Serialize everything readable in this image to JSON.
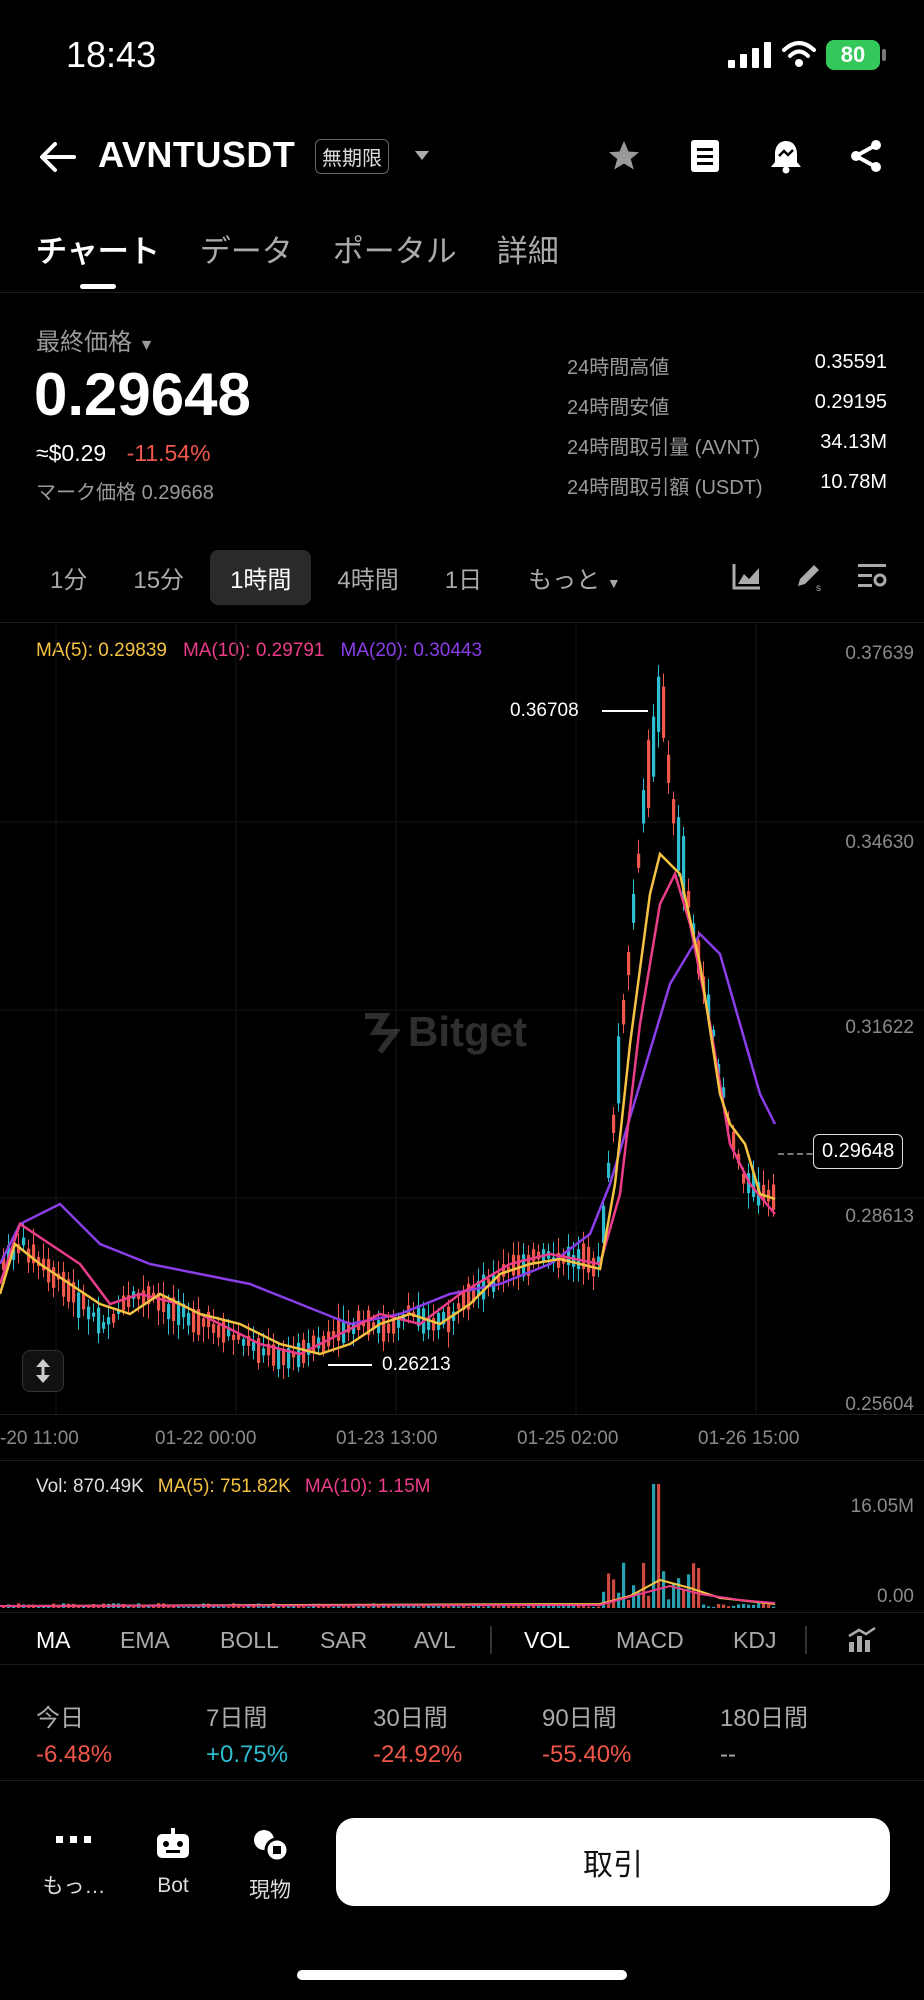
{
  "status_bar": {
    "time": "18:43",
    "battery": "80"
  },
  "header": {
    "title": "AVNTUSDT",
    "tag": "無期限"
  },
  "tabs": [
    {
      "label": "チャート"
    },
    {
      "label": "データ"
    },
    {
      "label": "ポータル"
    },
    {
      "label": "詳細"
    }
  ],
  "price": {
    "label": "最終価格",
    "last": "0.29648",
    "usd": "≈$0.29",
    "change": "-11.54%",
    "mark_label": "マーク価格",
    "mark_value": "0.29668"
  },
  "stats": [
    {
      "label": "24時間高値",
      "value": "0.35591"
    },
    {
      "label": "24時間安値",
      "value": "0.29195"
    },
    {
      "label": "24時間取引量 (AVNT)",
      "value": "34.13M"
    },
    {
      "label": "24時間取引額 (USDT)",
      "value": "10.78M"
    }
  ],
  "timeframes": [
    {
      "label": "1分"
    },
    {
      "label": "15分"
    },
    {
      "label": "1時間"
    },
    {
      "label": "4時間"
    },
    {
      "label": "1日"
    },
    {
      "label": "もっと"
    }
  ],
  "ma_legend": {
    "ma5": "MA(5): 0.29839",
    "ma10": "MA(10): 0.29791",
    "ma20": "MA(20): 0.30443"
  },
  "price_axis": [
    "0.37639",
    "0.34630",
    "0.31622",
    "0.28613",
    "0.25604"
  ],
  "time_axis": [
    "-20 11:00",
    "01-22 00:00",
    "01-23 13:00",
    "01-25 02:00",
    "01-26 15:00"
  ],
  "chart_annotations": {
    "high": "0.36708",
    "low": "0.26213",
    "current": "0.29648"
  },
  "watermark": "Bitget",
  "volume": {
    "vol": "Vol: 870.49K",
    "ma5": "MA(5): 751.82K",
    "ma10": "MA(10): 1.15M",
    "axis_max": "16.05M",
    "axis_min": "0.00"
  },
  "indicators": [
    {
      "label": "MA"
    },
    {
      "label": "EMA"
    },
    {
      "label": "BOLL"
    },
    {
      "label": "SAR"
    },
    {
      "label": "AVL"
    },
    {
      "label": "VOL"
    },
    {
      "label": "MACD"
    },
    {
      "label": "KDJ"
    }
  ],
  "performance": [
    {
      "label": "今日",
      "value": "-6.48%"
    },
    {
      "label": "7日間",
      "value": "+0.75%"
    },
    {
      "label": "30日間",
      "value": "-24.92%"
    },
    {
      "label": "90日間",
      "value": "-55.40%"
    },
    {
      "label": "180日間",
      "value": "--"
    }
  ],
  "bottom_nav": {
    "more": "もっ…",
    "bot": "Bot",
    "spot": "現物",
    "trade": "取引"
  },
  "colors": {
    "up": "#2ebcd1",
    "down": "#f0574b",
    "ma5": "#f5c242",
    "ma10": "#ec3d8a",
    "ma20": "#8a3ee8"
  },
  "chart_data": {
    "type": "candlestick",
    "y_range": [
      0.25604,
      0.37639
    ],
    "ma_lines": [
      {
        "name": "MA(5)",
        "value": 0.29839
      },
      {
        "name": "MA(10)",
        "value": 0.29791
      },
      {
        "name": "MA(20)",
        "value": 0.30443
      }
    ],
    "high": 0.36708,
    "low": 0.26213,
    "last": 0.29648
  }
}
